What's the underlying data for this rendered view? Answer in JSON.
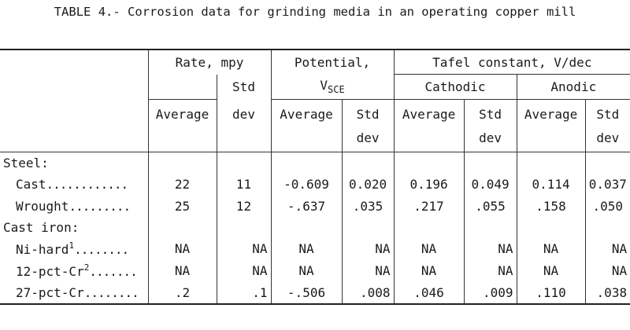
{
  "title": "TABLE 4.- Corrosion data for grinding media in an operating copper mill",
  "headers": {
    "rate": "Rate, mpy",
    "potential_line1": "Potential,",
    "potential_v": "V",
    "potential_sub": "SCE",
    "tafel": "Tafel constant, V/dec",
    "cathodic": "Cathodic",
    "anodic": "Anodic",
    "average": "Average",
    "std": "Std",
    "dev": "dev"
  },
  "groups": [
    {
      "name": "Steel:",
      "rows": [
        {
          "label": "Cast",
          "sup": "",
          "dots": "............",
          "rate_avg": "22",
          "rate_sd": "11",
          "pot_avg": "-0.609",
          "pot_sd": "0.020",
          "cat_avg": "0.196",
          "cat_sd": "0.049",
          "an_avg": "0.114",
          "an_sd": "0.037"
        },
        {
          "label": "Wrought",
          "sup": "",
          "dots": ".........",
          "rate_avg": "25",
          "rate_sd": "12",
          "pot_avg": "-.637",
          "pot_sd": ".035",
          "cat_avg": ".217",
          "cat_sd": ".055",
          "an_avg": ".158",
          "an_sd": ".050"
        }
      ]
    },
    {
      "name": "Cast iron:",
      "rows": [
        {
          "label": "Ni-hard",
          "sup": "1",
          "dots": "........",
          "rate_avg": "NA",
          "rate_sd": "NA",
          "pot_avg": "NA",
          "pot_sd": "NA",
          "cat_avg": "NA",
          "cat_sd": "NA",
          "an_avg": "NA",
          "an_sd": "NA"
        },
        {
          "label": "12-pct-Cr",
          "sup": "2",
          "dots": ".......",
          "rate_avg": "NA",
          "rate_sd": "NA",
          "pot_avg": "NA",
          "pot_sd": "NA",
          "cat_avg": "NA",
          "cat_sd": "NA",
          "an_avg": "NA",
          "an_sd": "NA"
        },
        {
          "label": "27-pct-Cr",
          "sup": "",
          "dots": "........",
          "rate_avg": ".2",
          "rate_sd": ".1",
          "pot_avg": "-.506",
          "pot_sd": ".008",
          "cat_avg": ".046",
          "cat_sd": ".009",
          "an_avg": ".110",
          "an_sd": ".038"
        }
      ]
    }
  ]
}
